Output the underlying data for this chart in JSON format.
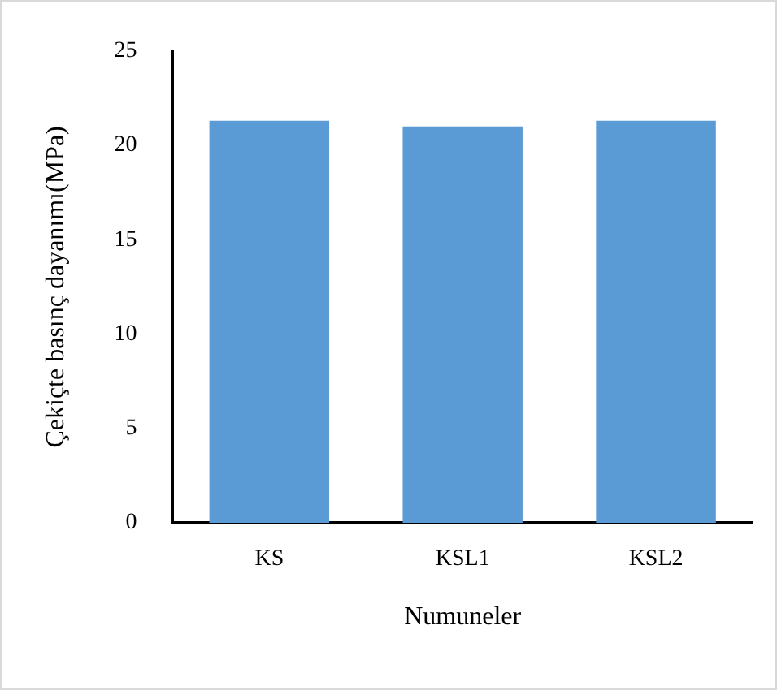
{
  "chart_data": {
    "type": "bar",
    "xlabel": "Numuneler",
    "ylabel": "Çekiçte basınç dayanımı(MPa)",
    "categories": [
      "KS",
      "KSL1",
      "KSL2"
    ],
    "values": [
      21.3,
      21.0,
      21.3
    ],
    "color": "#5b9bd5",
    "ylim": [
      0,
      25
    ],
    "yticks": [
      0,
      5,
      10,
      15,
      20,
      25
    ],
    "grid": false,
    "legend": false
  }
}
